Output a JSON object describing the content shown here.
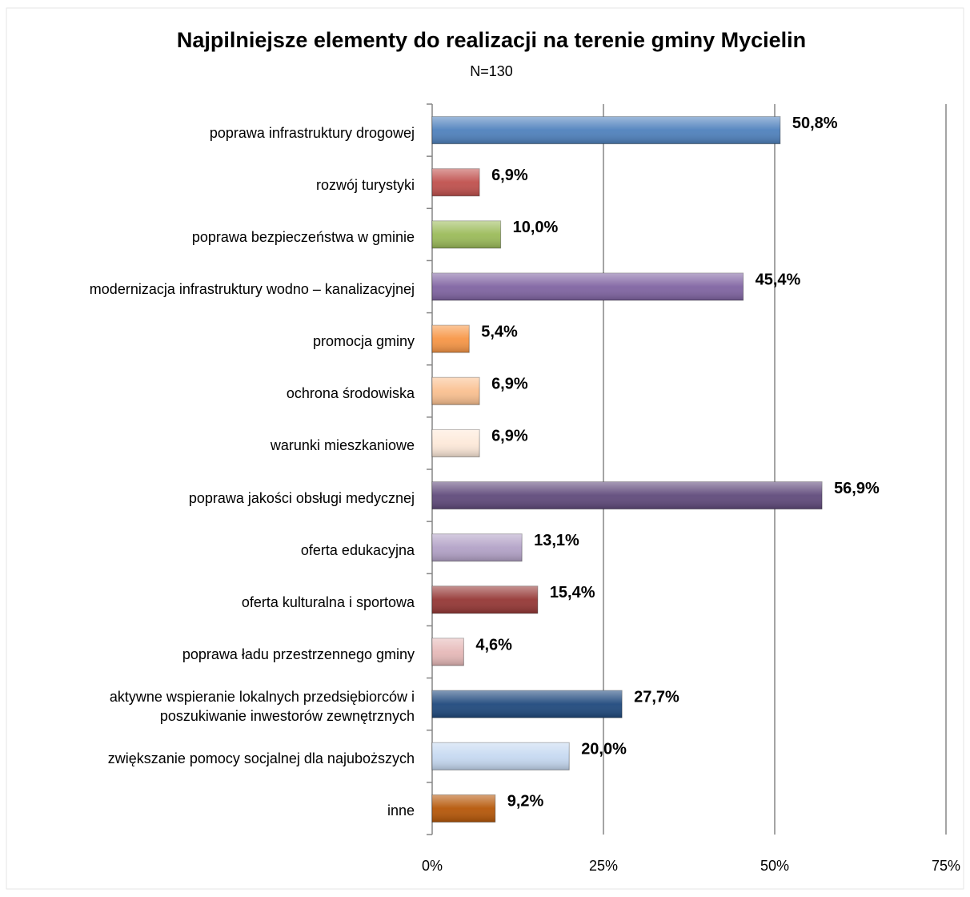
{
  "chart_data": {
    "type": "bar",
    "orientation": "horizontal",
    "title": "Najpilniejsze elementy do realizacji na terenie gminy Mycielin",
    "subtitle": "N=130",
    "categories": [
      "poprawa infrastruktury drogowej",
      "rozwój turystyki",
      "poprawa bezpieczeństwa w gminie",
      "modernizacja infrastruktury wodno – kanalizacyjnej",
      "promocja gminy",
      "ochrona środowiska",
      "warunki mieszkaniowe",
      "poprawa jakości obsługi medycznej",
      "oferta edukacyjna",
      "oferta kulturalna i sportowa",
      "poprawa ładu przestrzennego gminy",
      "aktywne wspieranie lokalnych przedsiębiorców i\nposzukiwanie inwestorów zewnętrznych",
      "zwiększanie pomocy socjalnej dla najuboższych",
      "inne"
    ],
    "values": [
      50.8,
      6.9,
      10.0,
      45.4,
      5.4,
      6.9,
      6.9,
      56.9,
      13.1,
      15.4,
      4.6,
      27.7,
      20.0,
      9.2
    ],
    "value_labels": [
      "50,8%",
      "6,9%",
      "10,0%",
      "45,4%",
      "5,4%",
      "6,9%",
      "6,9%",
      "56,9%",
      "13,1%",
      "15,4%",
      "4,6%",
      "27,7%",
      "20,0%",
      "9,2%"
    ],
    "colors": [
      "#4f81bd",
      "#c0504d",
      "#9bbb59",
      "#8064a2",
      "#f79646",
      "#fac090",
      "#fde9d9",
      "#604a7b",
      "#b3a2c7",
      "#953735",
      "#e6b9b8",
      "#1f497d",
      "#c6d9f1",
      "#b65708"
    ],
    "xlim": [
      0,
      75
    ],
    "xticks": [
      {
        "value": 0,
        "label": "0%"
      },
      {
        "value": 25,
        "label": "25%"
      },
      {
        "value": 50,
        "label": "50%"
      },
      {
        "value": 75,
        "label": "75%"
      }
    ],
    "grid": true
  }
}
